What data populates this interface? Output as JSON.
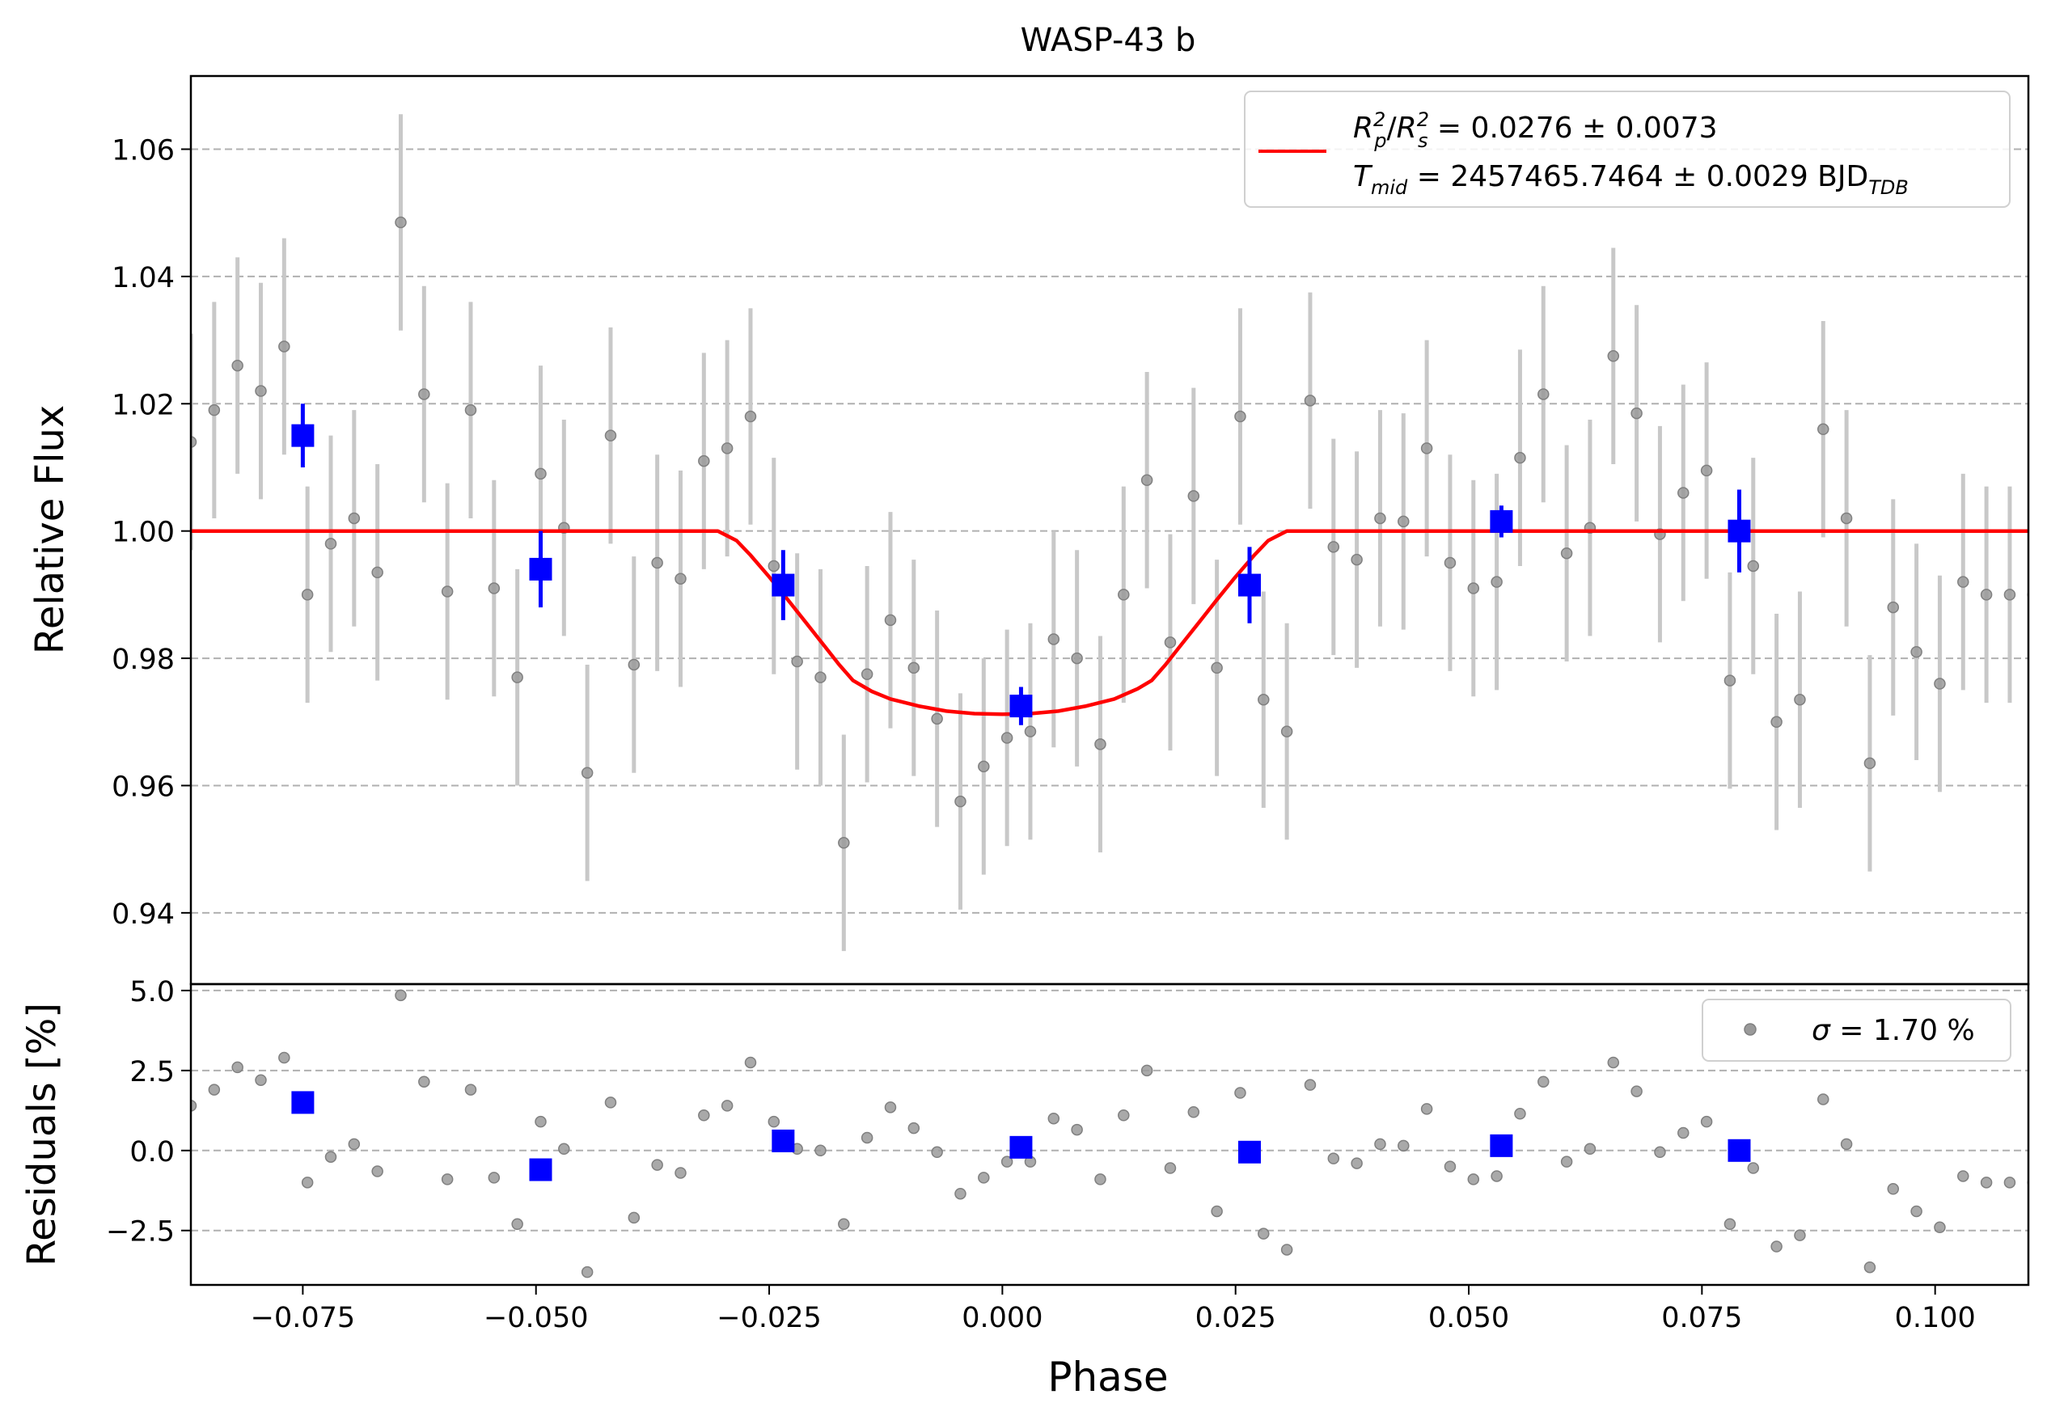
{
  "chart_data": {
    "type": "scatter",
    "title": "WASP-43 b",
    "xlabel": "Phase",
    "xlim": [
      -0.087,
      0.11
    ],
    "x_ticks": [
      -0.075,
      -0.05,
      -0.025,
      0.0,
      0.025,
      0.05,
      0.075,
      0.1
    ],
    "x_tick_labels": [
      "−0.075",
      "−0.050",
      "−0.025",
      "0.000",
      "0.025",
      "0.050",
      "0.075",
      "0.100"
    ],
    "grid": "horizontal dashed",
    "colors": {
      "raw": "#808080",
      "errorbar_raw": "#c8c8c8",
      "binned": "#0000ff",
      "model": "#ff0000"
    },
    "top_panel": {
      "ylabel": "Relative Flux",
      "ylim": [
        0.9288,
        1.0715
      ],
      "y_ticks": [
        0.94,
        0.96,
        0.98,
        1.0,
        1.02,
        1.04,
        1.06
      ],
      "y_tick_labels": [
        "0.94",
        "0.96",
        "0.98",
        "1.00",
        "1.02",
        "1.04",
        "1.06"
      ],
      "legend_position": "top-right",
      "legend": {
        "line1": {
          "r1": "R",
          "r1sub": "p",
          "r1sup": "2",
          "r2": "R",
          "r2sub": "s",
          "r2sup": "2",
          "value": " = 0.0276 ± 0.0073"
        },
        "line2": {
          "t": "T",
          "tsub": "mid",
          "value": " = 2457465.7464 ± 0.0029 BJD",
          "unit_sub": "TDB"
        }
      },
      "model": {
        "name": "transit model",
        "x": [
          -0.087,
          -0.0305,
          -0.0285,
          -0.027,
          -0.025,
          -0.023,
          -0.021,
          -0.019,
          -0.0175,
          -0.016,
          -0.014,
          -0.012,
          -0.009,
          -0.006,
          -0.003,
          0.0,
          0.003,
          0.006,
          0.009,
          0.012,
          0.0145,
          0.016,
          0.0175,
          0.019,
          0.021,
          0.023,
          0.025,
          0.027,
          0.0285,
          0.0305,
          0.11
        ],
        "y": [
          1.0,
          1.0,
          0.9985,
          0.9962,
          0.9928,
          0.9892,
          0.9855,
          0.9818,
          0.979,
          0.9765,
          0.9748,
          0.9736,
          0.9725,
          0.9717,
          0.9713,
          0.9712,
          0.9713,
          0.9717,
          0.9725,
          0.9736,
          0.9752,
          0.9765,
          0.979,
          0.9818,
          0.9855,
          0.9892,
          0.9928,
          0.9962,
          0.9985,
          1.0,
          1.0
        ]
      },
      "raw": {
        "x": [
          -0.087,
          -0.0845,
          -0.082,
          -0.0795,
          -0.077,
          -0.0745,
          -0.072,
          -0.0695,
          -0.067,
          -0.0645,
          -0.062,
          -0.0595,
          -0.057,
          -0.0545,
          -0.052,
          -0.0495,
          -0.047,
          -0.0445,
          -0.042,
          -0.0395,
          -0.037,
          -0.0345,
          -0.032,
          -0.0295,
          -0.027,
          -0.0245,
          -0.022,
          -0.0195,
          -0.017,
          -0.0145,
          -0.012,
          -0.0095,
          -0.007,
          -0.0045,
          -0.002,
          0.0005,
          0.003,
          0.0055,
          0.008,
          0.0105,
          0.013,
          0.0155,
          0.018,
          0.0205,
          0.023,
          0.0255,
          0.028,
          0.0305,
          0.033,
          0.0355,
          0.038,
          0.0405,
          0.043,
          0.0455,
          0.048,
          0.0505,
          0.053,
          0.0555,
          0.058,
          0.0605,
          0.063,
          0.0655,
          0.068,
          0.0705,
          0.073,
          0.0755,
          0.078,
          0.0805,
          0.083,
          0.0855,
          0.088,
          0.0905,
          0.093,
          0.0955,
          0.098,
          0.1005,
          0.103,
          0.1055,
          0.108,
          0.1105
        ],
        "y": [
          1.014,
          1.019,
          1.026,
          1.022,
          1.029,
          0.99,
          0.998,
          1.002,
          0.9935,
          1.0485,
          1.0215,
          0.9905,
          1.019,
          0.991,
          0.977,
          1.009,
          1.0005,
          0.962,
          1.015,
          0.979,
          0.995,
          0.9925,
          1.011,
          1.013,
          1.018,
          0.9945,
          0.9795,
          0.977,
          0.951,
          0.9775,
          0.986,
          0.9785,
          0.9705,
          0.9575,
          0.963,
          0.9675,
          0.9685,
          0.983,
          0.98,
          0.9665,
          0.99,
          1.008,
          0.9825,
          1.0055,
          0.9785,
          1.018,
          0.9735,
          0.9685,
          1.0205,
          0.9975,
          0.9955,
          1.002,
          1.0015,
          1.013,
          0.995,
          0.991,
          0.992,
          1.0115,
          1.0215,
          0.9965,
          1.0005,
          1.0275,
          1.0185,
          0.9995,
          1.006,
          1.0095,
          0.9765,
          0.9945,
          0.97,
          0.9735,
          1.016,
          1.002,
          0.9635,
          0.988,
          0.981,
          0.976,
          0.992,
          0.99,
          0.99,
          0.99
        ],
        "yerr": 0.017
      },
      "binned": {
        "x": [
          -0.075,
          -0.0495,
          -0.0235,
          0.002,
          0.0265,
          0.0535,
          0.079
        ],
        "y": [
          1.015,
          0.994,
          0.9915,
          0.9725,
          0.9915,
          1.0015,
          1.0
        ],
        "yerr": [
          0.005,
          0.006,
          0.0055,
          0.003,
          0.006,
          0.0025,
          0.0065
        ]
      }
    },
    "bottom_panel": {
      "ylabel": "Residuals [%]",
      "ylim": [
        -4.2,
        5.2
      ],
      "y_ticks": [
        -2.5,
        0.0,
        2.5,
        5.0
      ],
      "y_tick_labels": [
        "−2.5",
        "0.0",
        "2.5",
        "5.0"
      ],
      "legend_position": "top-right",
      "legend": {
        "sigma": "σ",
        "value": " = 1.70 %"
      },
      "raw_residuals": [
        1.4,
        1.9,
        2.6,
        2.2,
        2.9,
        -1.0,
        -0.2,
        0.2,
        -0.65,
        4.85,
        2.15,
        -0.9,
        1.9,
        -0.85,
        -2.3,
        0.9,
        0.05,
        -3.8,
        1.5,
        -2.1,
        -0.45,
        -0.7,
        1.1,
        1.4,
        2.75,
        0.9,
        0.05,
        0.0,
        -2.3,
        0.4,
        1.35,
        0.7,
        -0.05,
        -1.35,
        -0.85,
        -0.35,
        -0.35,
        1.0,
        0.65,
        -0.9,
        1.1,
        2.5,
        -0.55,
        1.2,
        -1.9,
        1.8,
        -2.6,
        -3.1,
        2.05,
        -0.25,
        -0.4,
        0.2,
        0.15,
        1.3,
        -0.5,
        -0.9,
        -0.8,
        1.15,
        2.15,
        -0.35,
        0.05,
        2.75,
        1.85,
        -0.05,
        0.55,
        0.9,
        -2.3,
        -0.55,
        -3.0,
        -2.65,
        1.6,
        0.2,
        -3.65,
        -1.2,
        -1.9,
        -2.4,
        -0.8,
        -1.0,
        -1.0,
        -1.0
      ],
      "binned_residuals": [
        1.5,
        -0.6,
        0.3,
        0.1,
        -0.05,
        0.15,
        0.0
      ]
    }
  }
}
